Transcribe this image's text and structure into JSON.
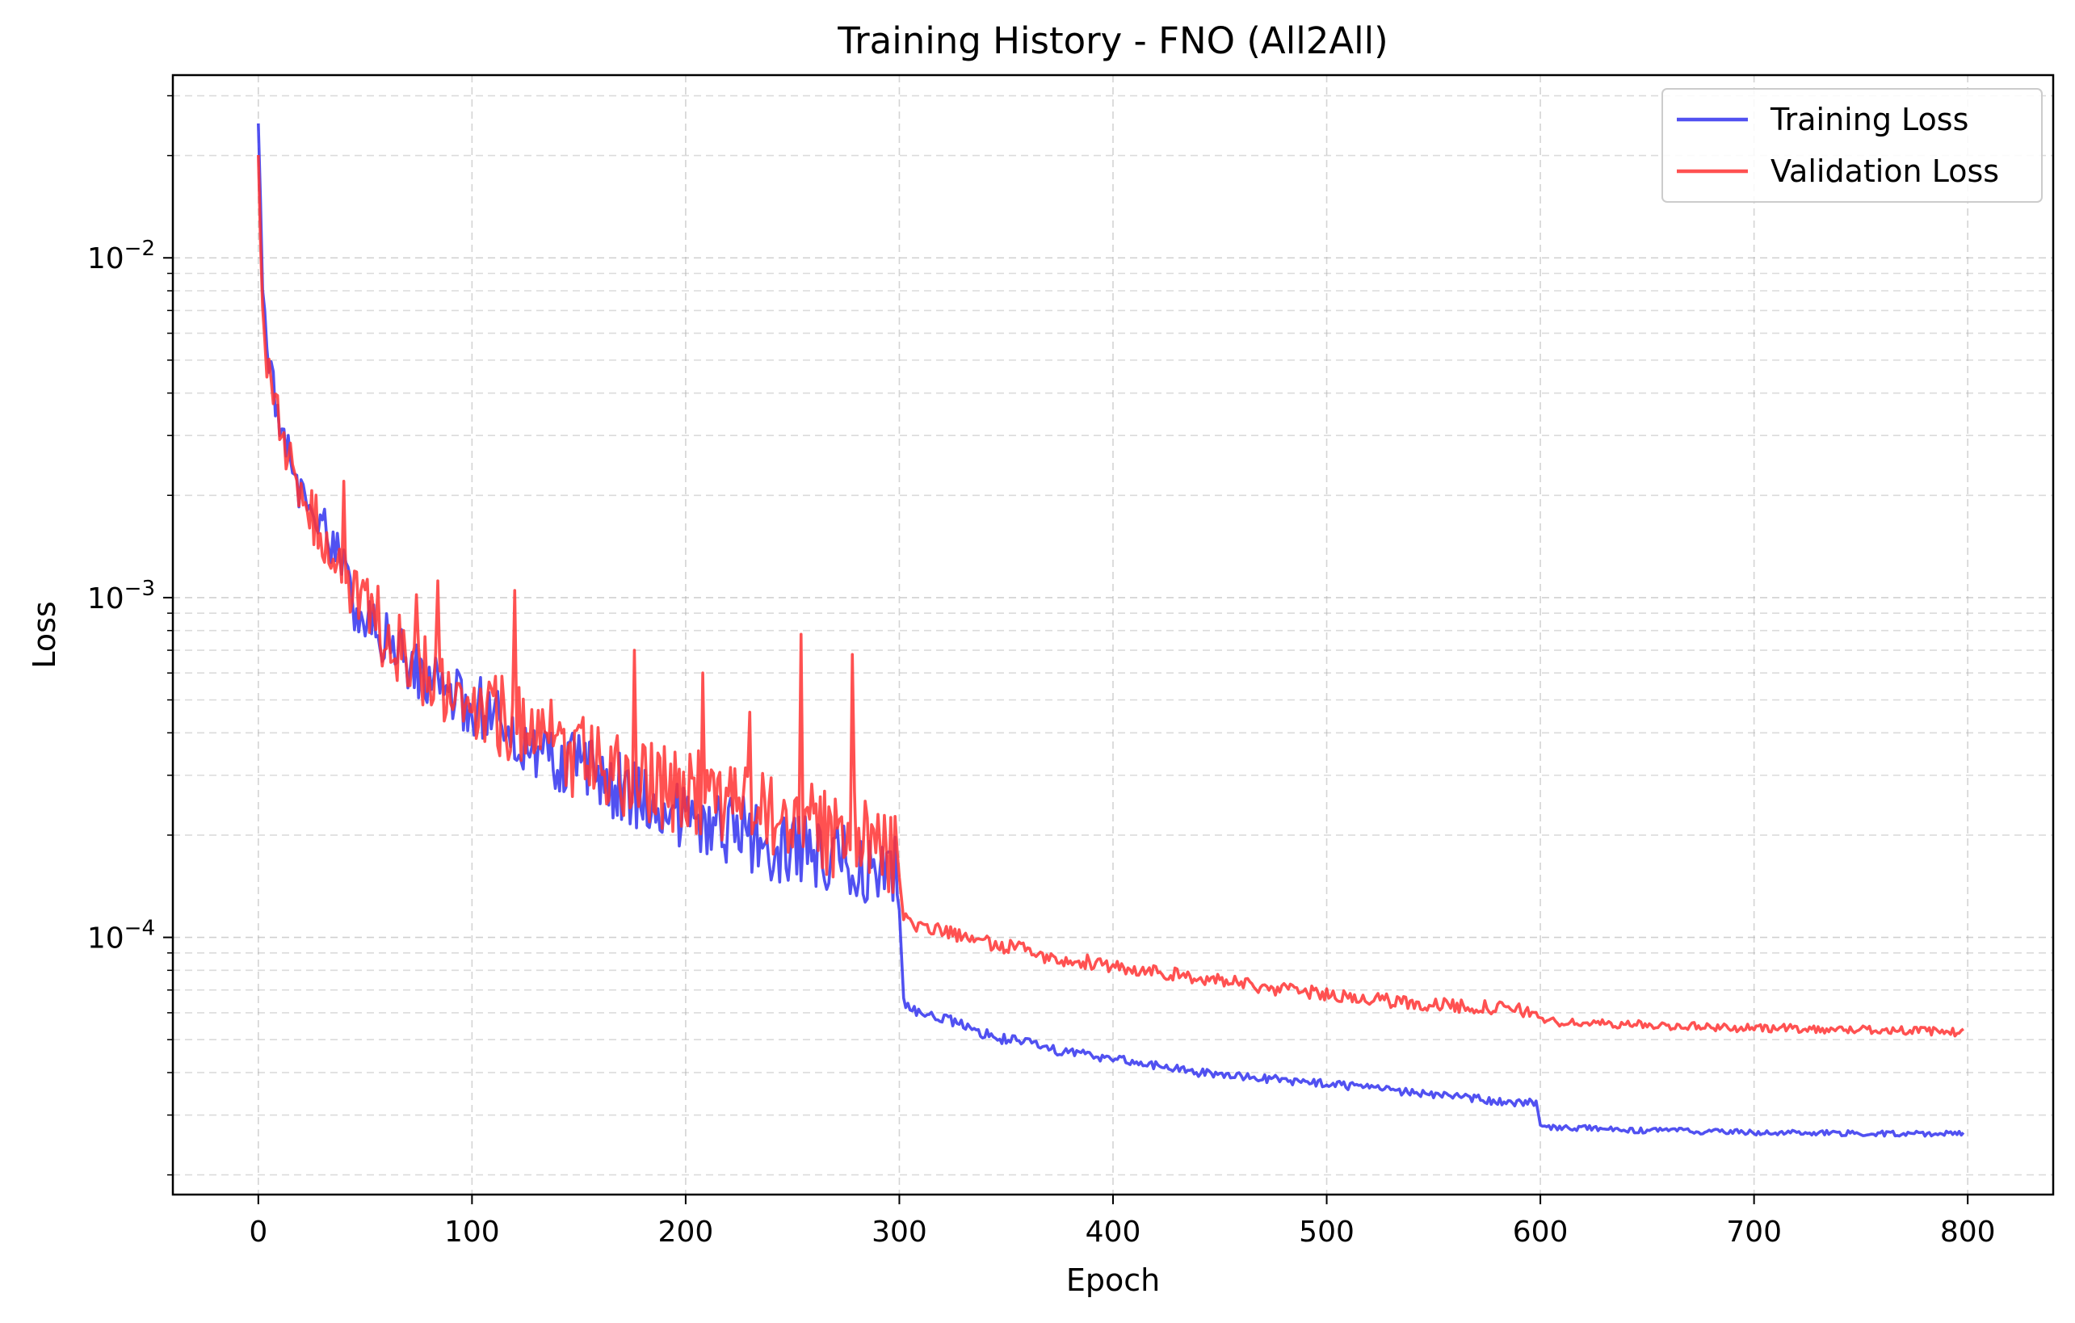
{
  "chart_data": {
    "type": "line",
    "title": "Training History - FNO (All2All)",
    "xlabel": "Epoch",
    "ylabel": "Loss",
    "yscale": "log",
    "xlim": [
      -40,
      840
    ],
    "ylim": [
      1.75e-05,
      0.0345
    ],
    "xticks": [
      0,
      100,
      200,
      300,
      400,
      500,
      600,
      700,
      800
    ],
    "xtick_labels": [
      "0",
      "100",
      "200",
      "300",
      "400",
      "500",
      "600",
      "700",
      "800"
    ],
    "yticks": [
      0.01,
      0.001,
      0.0001
    ],
    "ytick_labels": [
      {
        "base": "10",
        "exp": "−2"
      },
      {
        "base": "10",
        "exp": "−3"
      },
      {
        "base": "10",
        "exp": "−4"
      }
    ],
    "grid": true,
    "legend_position": "top-right",
    "series": [
      {
        "name": "Training Loss",
        "color": "#3333ee",
        "x": [
          0,
          2,
          4,
          6,
          8,
          10,
          12,
          15,
          18,
          22,
          26,
          30,
          35,
          40,
          45,
          50,
          60,
          70,
          80,
          90,
          100,
          110,
          120,
          130,
          140,
          150,
          160,
          170,
          180,
          190,
          200,
          210,
          220,
          230,
          240,
          250,
          260,
          270,
          280,
          290,
          298,
          300,
          302,
          305,
          310,
          320,
          330,
          340,
          350,
          360,
          370,
          380,
          390,
          400,
          420,
          440,
          460,
          480,
          500,
          520,
          540,
          560,
          580,
          598,
          600,
          602,
          610,
          620,
          640,
          660,
          680,
          700,
          720,
          740,
          760,
          780,
          798
        ],
        "y": [
          0.025,
          0.009,
          0.0055,
          0.0045,
          0.0038,
          0.0033,
          0.0029,
          0.0025,
          0.0022,
          0.0019,
          0.0017,
          0.0016,
          0.0014,
          0.0012,
          0.00095,
          0.0009,
          0.00075,
          0.00065,
          0.00058,
          0.00052,
          0.00048,
          0.00044,
          0.0004,
          0.00037,
          0.00034,
          0.00031,
          0.00029,
          0.000275,
          0.00026,
          0.000245,
          0.00023,
          0.00022,
          0.00021,
          0.0002,
          0.00019,
          0.00018,
          0.000175,
          0.00017,
          0.000165,
          0.00016,
          0.000155,
          0.00012,
          6.5e-05,
          6.2e-05,
          6e-05,
          5.8e-05,
          5.5e-05,
          5.2e-05,
          5e-05,
          4.9e-05,
          4.7e-05,
          4.6e-05,
          4.5e-05,
          4.4e-05,
          4.2e-05,
          4e-05,
          3.9e-05,
          3.8e-05,
          3.7e-05,
          3.6e-05,
          3.5e-05,
          3.4e-05,
          3.3e-05,
          3.25e-05,
          2.8e-05,
          2.75e-05,
          2.75e-05,
          2.75e-05,
          2.7e-05,
          2.7e-05,
          2.68e-05,
          2.67e-05,
          2.66e-05,
          2.65e-05,
          2.65e-05,
          2.64e-05,
          2.65e-05
        ],
        "noise": [
          0.05,
          0.05,
          0.05,
          0.05,
          0.06,
          0.06,
          0.06,
          0.07,
          0.07,
          0.07,
          0.07,
          0.07,
          0.07,
          0.07,
          0.08,
          0.08,
          0.08,
          0.08,
          0.09,
          0.09,
          0.1,
          0.1,
          0.1,
          0.1,
          0.1,
          0.11,
          0.11,
          0.11,
          0.11,
          0.11,
          0.11,
          0.12,
          0.12,
          0.12,
          0.12,
          0.12,
          0.12,
          0.12,
          0.12,
          0.12,
          0.12,
          0.0,
          0.015,
          0.015,
          0.015,
          0.015,
          0.015,
          0.015,
          0.015,
          0.015,
          0.015,
          0.015,
          0.015,
          0.015,
          0.012,
          0.012,
          0.012,
          0.012,
          0.012,
          0.012,
          0.012,
          0.012,
          0.012,
          0.012,
          0.0,
          0.008,
          0.008,
          0.008,
          0.008,
          0.008,
          0.008,
          0.008,
          0.008,
          0.008,
          0.008,
          0.008,
          0.008
        ]
      },
      {
        "name": "Validation Loss",
        "color": "#ff3333",
        "x": [
          0,
          2,
          4,
          6,
          8,
          10,
          12,
          15,
          18,
          22,
          26,
          30,
          35,
          40,
          45,
          50,
          60,
          70,
          80,
          90,
          100,
          110,
          120,
          130,
          140,
          150,
          160,
          170,
          180,
          190,
          200,
          210,
          220,
          230,
          240,
          250,
          260,
          270,
          280,
          290,
          298,
          300,
          302,
          305,
          310,
          320,
          330,
          340,
          350,
          360,
          370,
          380,
          390,
          400,
          420,
          440,
          460,
          480,
          500,
          520,
          540,
          560,
          580,
          598,
          600,
          602,
          610,
          620,
          640,
          660,
          680,
          700,
          720,
          740,
          760,
          780,
          798
        ],
        "y": [
          0.018,
          0.008,
          0.005,
          0.0042,
          0.0036,
          0.0032,
          0.0028,
          0.0024,
          0.0021,
          0.0018,
          0.0017,
          0.0016,
          0.0014,
          0.0012,
          0.001,
          0.00092,
          0.00078,
          0.00068,
          0.0006,
          0.00054,
          0.0005,
          0.00046,
          0.00043,
          0.0004,
          0.00037,
          0.00034,
          0.00032,
          0.0003,
          0.00029,
          0.00028,
          0.00027,
          0.00026,
          0.00025,
          0.00024,
          0.00023,
          0.00022,
          0.00021,
          0.0002,
          0.0002,
          0.00019,
          0.00018,
          0.00015,
          0.000115,
          0.00011,
          0.000108,
          0.000105,
          0.0001,
          9.7e-05,
          9.4e-05,
          9.1e-05,
          8.8e-05,
          8.6e-05,
          8.4e-05,
          8.2e-05,
          7.9e-05,
          7.6e-05,
          7.3e-05,
          7e-05,
          6.8e-05,
          6.6e-05,
          6.4e-05,
          6.3e-05,
          6.2e-05,
          6e-05,
          5.8e-05,
          5.7e-05,
          5.6e-05,
          5.6e-05,
          5.55e-05,
          5.5e-05,
          5.45e-05,
          5.4e-05,
          5.4e-05,
          5.35e-05,
          5.35e-05,
          5.3e-05,
          5.25e-05
        ],
        "noise": [
          0.05,
          0.05,
          0.05,
          0.06,
          0.06,
          0.07,
          0.07,
          0.08,
          0.08,
          0.08,
          0.08,
          0.09,
          0.09,
          0.09,
          0.1,
          0.1,
          0.11,
          0.11,
          0.12,
          0.12,
          0.12,
          0.12,
          0.12,
          0.12,
          0.13,
          0.13,
          0.13,
          0.13,
          0.13,
          0.13,
          0.13,
          0.13,
          0.13,
          0.13,
          0.13,
          0.13,
          0.13,
          0.13,
          0.13,
          0.13,
          0.13,
          0.0,
          0.02,
          0.02,
          0.02,
          0.02,
          0.022,
          0.022,
          0.022,
          0.022,
          0.022,
          0.022,
          0.022,
          0.022,
          0.02,
          0.02,
          0.02,
          0.02,
          0.02,
          0.02,
          0.02,
          0.02,
          0.02,
          0.02,
          0.0,
          0.012,
          0.012,
          0.012,
          0.012,
          0.012,
          0.012,
          0.012,
          0.012,
          0.012,
          0.012,
          0.012,
          0.012
        ]
      }
    ],
    "spikes": [
      {
        "series": 1,
        "x": 40,
        "y": 0.0022
      },
      {
        "series": 1,
        "x": 48,
        "y": 0.00105
      },
      {
        "series": 1,
        "x": 56,
        "y": 0.00108
      },
      {
        "series": 1,
        "x": 74,
        "y": 0.00102
      },
      {
        "series": 1,
        "x": 84,
        "y": 0.00112
      },
      {
        "series": 1,
        "x": 120,
        "y": 0.00105
      },
      {
        "series": 1,
        "x": 176,
        "y": 0.0007
      },
      {
        "series": 1,
        "x": 208,
        "y": 0.0006
      },
      {
        "series": 1,
        "x": 230,
        "y": 0.00046
      },
      {
        "series": 1,
        "x": 254,
        "y": 0.00078
      },
      {
        "series": 1,
        "x": 278,
        "y": 0.00068
      }
    ]
  }
}
